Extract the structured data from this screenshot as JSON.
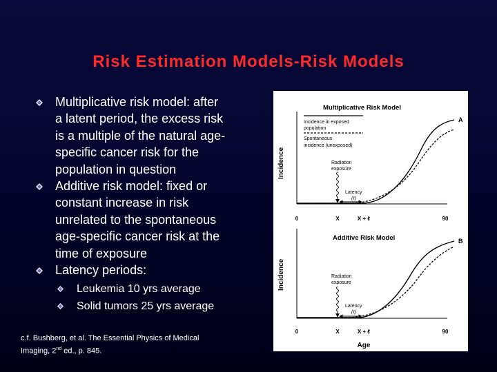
{
  "slide": {
    "title": "Risk Estimation Models-Risk Models",
    "bullets": [
      {
        "lines": [
          "Multiplicative risk model: after",
          "a latent period, the excess risk",
          "is a multiple of the natural age-",
          "specific cancer risk for the",
          "population in question"
        ]
      },
      {
        "lines": [
          "Additive risk model: fixed or",
          "constant increase in risk",
          "unrelated to the spontaneous",
          "age-specific cancer risk at the",
          "time of exposure"
        ]
      },
      {
        "lines": [
          "Latency periods:"
        ]
      }
    ],
    "sub_bullets": [
      "Leukemia 10 yrs average",
      "Solid tumors 25 yrs average"
    ],
    "citation": {
      "line1": "c.f. Bushberg, et al. The Essential Physics of Medical",
      "line2_pre": "Imaging, 2",
      "line2_sup": "nd",
      "line2_post": " ed., p. 845."
    },
    "bullet_color": "#e8e8ff"
  },
  "figure": {
    "panel_a": {
      "title": "Multiplicative Risk Model",
      "letter": "A",
      "ylabel": "Incidence",
      "legend_solid": [
        "Incidence in exposed",
        "population"
      ],
      "legend_dashed": [
        "Spontaneous",
        "incidence (unexposed)"
      ],
      "exposure": [
        "Radiation",
        "exposure"
      ],
      "latency": "Latency",
      "latency_symbol": "(ℓ)",
      "ticks": [
        "0",
        "X",
        "X + ℓ",
        "90"
      ]
    },
    "panel_b": {
      "title": "Additive Risk Model",
      "letter": "B",
      "ylabel": "Incidence",
      "exposure": [
        "Radiation",
        "exposure"
      ],
      "latency": "Latency",
      "latency_symbol": "(ℓ)",
      "ticks": [
        "0",
        "X",
        "X + ℓ",
        "90"
      ],
      "xlabel": "Age"
    }
  }
}
